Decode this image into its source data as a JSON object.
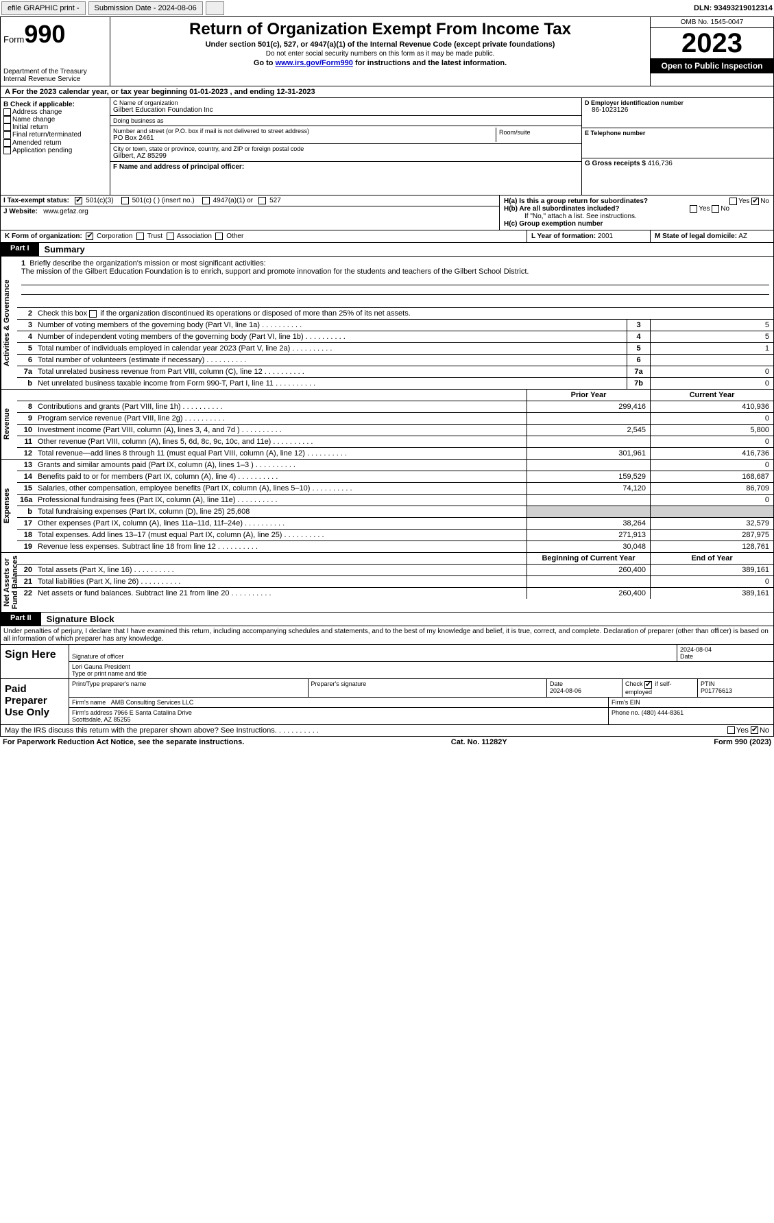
{
  "topbar": {
    "efile": "efile GRAPHIC print -",
    "submission": "Submission Date - 2024-08-06",
    "dln_label": "DLN:",
    "dln": "93493219012314"
  },
  "header": {
    "form_label": "Form",
    "form_num": "990",
    "title": "Return of Organization Exempt From Income Tax",
    "sub": "Under section 501(c), 527, or 4947(a)(1) of the Internal Revenue Code (except private foundations)",
    "sub2": "Do not enter social security numbers on this form as it may be made public.",
    "sub3_pre": "Go to ",
    "sub3_link": "www.irs.gov/Form990",
    "sub3_post": " for instructions and the latest information.",
    "dept": "Department of the Treasury\nInternal Revenue Service",
    "omb": "OMB No. 1545-0047",
    "year": "2023",
    "open": "Open to Public Inspection"
  },
  "rowA": {
    "pre": "A For the 2023 calendar year, or tax year beginning ",
    "begin": "01-01-2023",
    "mid": " , and ending ",
    "end": "12-31-2023"
  },
  "colB": {
    "title": "B Check if applicable:",
    "items": [
      "Address change",
      "Name change",
      "Initial return",
      "Final return/terminated",
      "Amended return",
      "Application pending"
    ]
  },
  "colC": {
    "name_lbl": "C Name of organization",
    "name": "Gilbert Education Foundation Inc",
    "dba_lbl": "Doing business as",
    "dba": "",
    "street_lbl": "Number and street (or P.O. box if mail is not delivered to street address)",
    "street": "PO Box 2461",
    "room_lbl": "Room/suite",
    "city_lbl": "City or town, state or province, country, and ZIP or foreign postal code",
    "city": "Gilbert, AZ  85299",
    "f_lbl": "F Name and address of principal officer:",
    "f_val": ""
  },
  "colD": {
    "d_lbl": "D Employer identification number",
    "d_val": "86-1023126",
    "e_lbl": "E Telephone number",
    "e_val": "",
    "g_lbl": "G Gross receipts $",
    "g_val": "416,736"
  },
  "colH": {
    "ha": "H(a)  Is this a group return for subordinates?",
    "hb": "H(b)  Are all subordinates included?",
    "hb_note": "If \"No,\" attach a list. See instructions.",
    "hc": "H(c)  Group exemption number"
  },
  "rowI": {
    "lbl": "I     Tax-exempt status:",
    "opts": [
      "501(c)(3)",
      "501(c) (  ) (insert no.)",
      "4947(a)(1) or",
      "527"
    ]
  },
  "rowJ": {
    "lbl": "J     Website:",
    "val": "www.gefaz.org"
  },
  "rowK": {
    "lbl": "K Form of organization:",
    "opts": [
      "Corporation",
      "Trust",
      "Association",
      "Other"
    ],
    "l_lbl": "L Year of formation:",
    "l_val": "2001",
    "m_lbl": "M State of legal domicile:",
    "m_val": "AZ"
  },
  "part1": {
    "hdr": "Part I",
    "title": "Summary"
  },
  "summary": {
    "q1_lbl": "Briefly describe the organization's mission or most significant activities:",
    "q1_txt": "The mission of the Gilbert Education Foundation is to enrich, support and promote innovation for the students and teachers of the Gilbert School District.",
    "q2": "Check this box      if the organization discontinued its operations or disposed of more than 25% of its net assets.",
    "rows_gov": [
      {
        "n": "3",
        "t": "Number of voting members of the governing body (Part VI, line 1a)",
        "box": "3",
        "v": "5"
      },
      {
        "n": "4",
        "t": "Number of independent voting members of the governing body (Part VI, line 1b)",
        "box": "4",
        "v": "5"
      },
      {
        "n": "5",
        "t": "Total number of individuals employed in calendar year 2023 (Part V, line 2a)",
        "box": "5",
        "v": "1"
      },
      {
        "n": "6",
        "t": "Total number of volunteers (estimate if necessary)",
        "box": "6",
        "v": ""
      },
      {
        "n": "7a",
        "t": "Total unrelated business revenue from Part VIII, column (C), line 12",
        "box": "7a",
        "v": "0"
      },
      {
        "n": "b",
        "t": "Net unrelated business taxable income from Form 990-T, Part I, line 11",
        "box": "7b",
        "v": "0"
      }
    ],
    "rev_hdr": {
      "c1": "Prior Year",
      "c2": "Current Year"
    },
    "rows_rev": [
      {
        "n": "8",
        "t": "Contributions and grants (Part VIII, line 1h)",
        "p": "299,416",
        "c": "410,936"
      },
      {
        "n": "9",
        "t": "Program service revenue (Part VIII, line 2g)",
        "p": "",
        "c": "0"
      },
      {
        "n": "10",
        "t": "Investment income (Part VIII, column (A), lines 3, 4, and 7d )",
        "p": "2,545",
        "c": "5,800"
      },
      {
        "n": "11",
        "t": "Other revenue (Part VIII, column (A), lines 5, 6d, 8c, 9c, 10c, and 11e)",
        "p": "",
        "c": "0"
      },
      {
        "n": "12",
        "t": "Total revenue—add lines 8 through 11 (must equal Part VIII, column (A), line 12)",
        "p": "301,961",
        "c": "416,736"
      }
    ],
    "rows_exp": [
      {
        "n": "13",
        "t": "Grants and similar amounts paid (Part IX, column (A), lines 1–3 )",
        "p": "",
        "c": "0"
      },
      {
        "n": "14",
        "t": "Benefits paid to or for members (Part IX, column (A), line 4)",
        "p": "159,529",
        "c": "168,687"
      },
      {
        "n": "15",
        "t": "Salaries, other compensation, employee benefits (Part IX, column (A), lines 5–10)",
        "p": "74,120",
        "c": "86,709"
      },
      {
        "n": "16a",
        "t": "Professional fundraising fees (Part IX, column (A), line 11e)",
        "p": "",
        "c": "0"
      },
      {
        "n": "b",
        "t": "Total fundraising expenses (Part IX, column (D), line 25) 25,608",
        "p": "shade",
        "c": "shade"
      },
      {
        "n": "17",
        "t": "Other expenses (Part IX, column (A), lines 11a–11d, 11f–24e)",
        "p": "38,264",
        "c": "32,579"
      },
      {
        "n": "18",
        "t": "Total expenses. Add lines 13–17 (must equal Part IX, column (A), line 25)",
        "p": "271,913",
        "c": "287,975"
      },
      {
        "n": "19",
        "t": "Revenue less expenses. Subtract line 18 from line 12",
        "p": "30,048",
        "c": "128,761"
      }
    ],
    "na_hdr": {
      "c1": "Beginning of Current Year",
      "c2": "End of Year"
    },
    "rows_na": [
      {
        "n": "20",
        "t": "Total assets (Part X, line 16)",
        "p": "260,400",
        "c": "389,161"
      },
      {
        "n": "21",
        "t": "Total liabilities (Part X, line 26)",
        "p": "",
        "c": "0"
      },
      {
        "n": "22",
        "t": "Net assets or fund balances. Subtract line 21 from line 20",
        "p": "260,400",
        "c": "389,161"
      }
    ],
    "vtabs": {
      "gov": "Activities & Governance",
      "rev": "Revenue",
      "exp": "Expenses",
      "na": "Net Assets or\nFund Balances"
    }
  },
  "part2": {
    "hdr": "Part II",
    "title": "Signature Block",
    "decl": "Under penalties of perjury, I declare that I have examined this return, including accompanying schedules and statements, and to the best of my knowledge and belief, it is true, correct, and complete. Declaration of preparer (other than officer) is based on all information of which preparer has any knowledge."
  },
  "sign": {
    "lbl": "Sign Here",
    "sig_lbl": "Signature of officer",
    "name": "Lori Gauna  President",
    "name_lbl": "Type or print name and title",
    "date": "2024-08-04",
    "date_lbl": "Date"
  },
  "preparer": {
    "lbl": "Paid Preparer Use Only",
    "col1": "Print/Type preparer's name",
    "col2": "Preparer's signature",
    "col3_lbl": "Date",
    "col3": "2024-08-06",
    "col4_lbl": "Check        if self-employed",
    "col5_lbl": "PTIN",
    "col5": "P01776613",
    "firm_lbl": "Firm's name",
    "firm": "AMB Consulting Services LLC",
    "ein_lbl": "Firm's EIN",
    "addr_lbl": "Firm's address",
    "addr": "7966 E Santa Catalina Drive\nScottsdale, AZ  85255",
    "phone_lbl": "Phone no.",
    "phone": "(480) 444-8361"
  },
  "discuss": "May the IRS discuss this return with the preparer shown above? See Instructions.",
  "footer": {
    "l": "For Paperwork Reduction Act Notice, see the separate instructions.",
    "m": "Cat. No. 11282Y",
    "r": "Form 990 (2023)"
  },
  "yesno": {
    "yes": "Yes",
    "no": "No"
  }
}
